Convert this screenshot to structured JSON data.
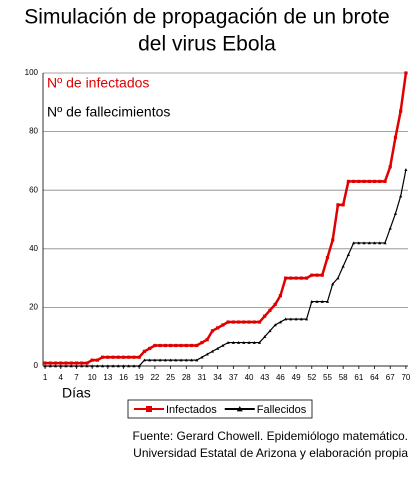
{
  "chart_data": {
    "type": "line",
    "title": "Simulación de propagación de un brote",
    "subtitle": "del virus Ebola",
    "annotations": [
      "Nº de infectados",
      "Nº de fallecimientos"
    ],
    "x_label": "Días",
    "source": [
      "Fuente: Gerard Chowell. Epidemiólogo matemático.",
      "Universidad Estatal de Arizona y elaboración propia"
    ],
    "x": [
      1,
      2,
      3,
      4,
      5,
      6,
      7,
      8,
      9,
      10,
      11,
      12,
      13,
      14,
      15,
      16,
      17,
      18,
      19,
      20,
      21,
      22,
      23,
      24,
      25,
      26,
      27,
      28,
      29,
      30,
      31,
      32,
      33,
      34,
      35,
      36,
      37,
      38,
      39,
      40,
      41,
      42,
      43,
      44,
      45,
      46,
      47,
      48,
      49,
      50,
      51,
      52,
      53,
      54,
      55,
      56,
      57,
      58,
      59,
      60,
      61,
      62,
      63,
      64,
      65,
      66,
      67,
      68,
      69,
      70
    ],
    "series": [
      {
        "name": "Infectados",
        "color": "#e00000",
        "marker": "square",
        "values": [
          1,
          1,
          1,
          1,
          1,
          1,
          1,
          1,
          1,
          2,
          2,
          3,
          3,
          3,
          3,
          3,
          3,
          3,
          3,
          5,
          6,
          7,
          7,
          7,
          7,
          7,
          7,
          7,
          7,
          7,
          8,
          9,
          12,
          13,
          14,
          15,
          15,
          15,
          15,
          15,
          15,
          15,
          17,
          19,
          21,
          24,
          30,
          30,
          30,
          30,
          30,
          31,
          31,
          31,
          37,
          43,
          55,
          55,
          63,
          63,
          63,
          63,
          63,
          63,
          63,
          63,
          68,
          78,
          87,
          100
        ]
      },
      {
        "name": "Fallecidos",
        "color": "#000000",
        "marker": "triangle",
        "values": [
          0,
          0,
          0,
          0,
          0,
          0,
          0,
          0,
          0,
          0,
          0,
          0,
          0,
          0,
          0,
          0,
          0,
          0,
          0,
          2,
          2,
          2,
          2,
          2,
          2,
          2,
          2,
          2,
          2,
          2,
          3,
          4,
          5,
          6,
          7,
          8,
          8,
          8,
          8,
          8,
          8,
          8,
          10,
          12,
          14,
          15,
          16,
          16,
          16,
          16,
          16,
          22,
          22,
          22,
          22,
          28,
          30,
          34,
          38,
          42,
          42,
          42,
          42,
          42,
          42,
          42,
          47,
          52,
          58,
          67
        ]
      }
    ],
    "xlim": [
      0.6,
      70.4
    ],
    "xticks": [
      1,
      4,
      7,
      10,
      13,
      16,
      19,
      22,
      25,
      28,
      31,
      34,
      37,
      40,
      43,
      46,
      49,
      52,
      55,
      58,
      61,
      64,
      67,
      70
    ],
    "ylim": [
      0,
      100
    ],
    "yticks": [
      0,
      20,
      40,
      60,
      80,
      100
    ],
    "grid": true,
    "legend": "bottom"
  }
}
